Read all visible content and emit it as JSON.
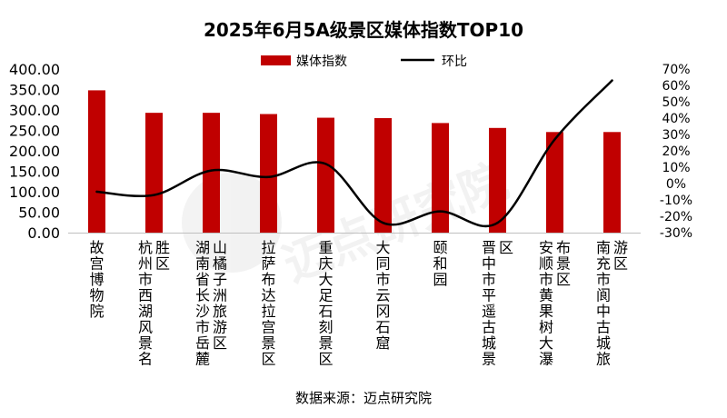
{
  "chart_data": {
    "type": "bar",
    "title": "2025年6月5A级景区媒体指数TOP10",
    "categories": [
      "故宫博物院",
      "杭州市西湖风景名胜区",
      "湖南省长沙市岳麓山橘子洲旅游区",
      "拉萨布达拉宫景区",
      "重庆大足石刻景区",
      "大同市云冈石窟",
      "颐和园",
      "晋中市平遥古城景区",
      "安顺市黄果树大瀑布景区",
      "南充市阆中古城旅游区"
    ],
    "category_lines": [
      [
        "故宫博物院"
      ],
      [
        "杭州市西湖风景名",
        "胜区"
      ],
      [
        "湖南省长沙市岳麓",
        "山橘子洲旅游区"
      ],
      [
        "拉萨布达拉宫景区"
      ],
      [
        "重庆大足石刻景区"
      ],
      [
        "大同市云冈石窟"
      ],
      [
        "颐和园"
      ],
      [
        "晋中市平遥古城景",
        "区"
      ],
      [
        "安顺市黄果树大瀑",
        "布景区"
      ],
      [
        "南充市阆中古城旅",
        "游区"
      ]
    ],
    "series": [
      {
        "name": "媒体指数",
        "kind": "bar",
        "axis": "left",
        "color": "#c00000",
        "values": [
          348,
          293,
          293,
          290,
          281,
          280,
          268,
          256,
          246,
          246
        ]
      },
      {
        "name": "环比",
        "kind": "line",
        "axis": "right",
        "color": "#000000",
        "unit": "%",
        "values": [
          -5,
          -7,
          8,
          4,
          12,
          -24,
          -17,
          -24,
          27,
          63
        ]
      }
    ],
    "y_left": {
      "min": 0,
      "max": 400,
      "ticks": [
        "0.00",
        "50.00",
        "100.00",
        "150.00",
        "200.00",
        "250.00",
        "300.00",
        "350.00",
        "400.00"
      ]
    },
    "y_right": {
      "min": -30,
      "max": 70,
      "ticks": [
        "-30%",
        "-20%",
        "-10%",
        "0%",
        "10%",
        "20%",
        "30%",
        "40%",
        "50%",
        "60%",
        "70%"
      ]
    },
    "legend_position": "top-center",
    "grid": false,
    "source": "数据来源：迈点研究院",
    "watermark": "迈点研究院"
  }
}
